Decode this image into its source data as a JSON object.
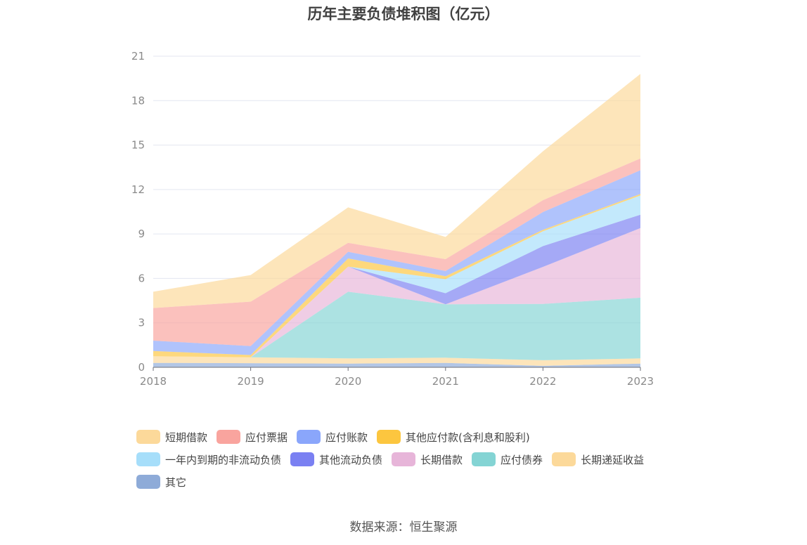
{
  "chart_data": {
    "type": "area",
    "title": "历年主要负债堆积图（亿元）",
    "x": [
      "2018",
      "2019",
      "2020",
      "2021",
      "2022",
      "2023"
    ],
    "ylim": [
      0,
      21
    ],
    "yticks": [
      0,
      3,
      6,
      9,
      12,
      15,
      18,
      21
    ],
    "grid": true,
    "legend": "bottom",
    "series": [
      {
        "name": "其它",
        "color": "#8eabd8",
        "values": [
          0.3,
          0.28,
          0.25,
          0.3,
          0.1,
          0.25
        ]
      },
      {
        "name": "长期递延收益",
        "color": "#fcd99a",
        "values": [
          0.45,
          0.4,
          0.35,
          0.35,
          0.38,
          0.35
        ]
      },
      {
        "name": "应付债券",
        "color": "#84d4d4",
        "values": [
          0.0,
          0.0,
          4.5,
          3.6,
          3.8,
          4.1
        ]
      },
      {
        "name": "长期借款",
        "color": "#e7b5d9",
        "values": [
          0.0,
          0.0,
          1.7,
          0.0,
          2.5,
          4.7
        ]
      },
      {
        "name": "其他流动负债",
        "color": "#7a80f2",
        "values": [
          0.0,
          0.0,
          0.0,
          0.75,
          1.4,
          0.9
        ]
      },
      {
        "name": "一年内到期的非流动负债",
        "color": "#a6defa",
        "values": [
          0.0,
          0.0,
          0.0,
          0.95,
          1.0,
          1.3
        ]
      },
      {
        "name": "其他应付款(含利息和股利)",
        "color": "#fcc63f",
        "values": [
          0.35,
          0.15,
          0.55,
          0.2,
          0.1,
          0.1
        ]
      },
      {
        "name": "应付账款",
        "color": "#8aa6fb",
        "values": [
          0.7,
          0.6,
          0.45,
          0.35,
          1.2,
          1.6
        ]
      },
      {
        "name": "应付票据",
        "color": "#f9a49e",
        "values": [
          2.2,
          3.0,
          0.6,
          0.8,
          0.8,
          0.8
        ]
      },
      {
        "name": "短期借款",
        "color": "#fcd99a",
        "values": [
          1.1,
          1.8,
          2.4,
          1.5,
          3.3,
          5.7
        ]
      }
    ],
    "legend_order": [
      "短期借款",
      "应付票据",
      "应付账款",
      "其他应付款(含利息和股利)",
      "一年内到期的非流动负债",
      "其他流动负债",
      "长期借款",
      "应付债券",
      "长期递延收益",
      "其它"
    ]
  },
  "source_text": "数据来源：恒生聚源"
}
